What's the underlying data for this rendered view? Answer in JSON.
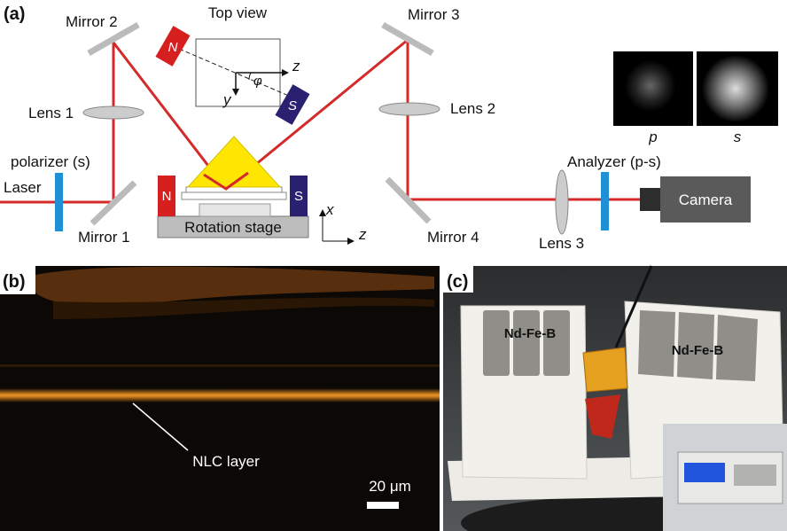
{
  "panel_a": {
    "label": "(a)",
    "top_view": "Top view",
    "mirror_1": "Mirror 1",
    "mirror_2": "Mirror 2",
    "mirror_3": "Mirror 3",
    "mirror_4": "Mirror 4",
    "lens_1": "Lens 1",
    "lens_2": "Lens 2",
    "lens_3": "Lens 3",
    "polarizer": "polarizer (s)",
    "analyzer": "Analyzer (p-s)",
    "laser": "Laser",
    "camera": "Camera",
    "rotation_stage": "Rotation stage",
    "magnet_n": "N",
    "magnet_s": "S",
    "top_view_axes": {
      "z": "z",
      "y": "y",
      "angle": "φ"
    },
    "stage_axes": {
      "x": "x",
      "z": "z"
    },
    "images": {
      "p": "p",
      "s": "s"
    }
  },
  "panel_b": {
    "label": "(b)",
    "annotation": "NLC layer",
    "scale_bar": "20 μm"
  },
  "panel_c": {
    "label": "(c)",
    "magnet_left": "Nd-Fe-B",
    "magnet_right": "Nd-Fe-B"
  }
}
